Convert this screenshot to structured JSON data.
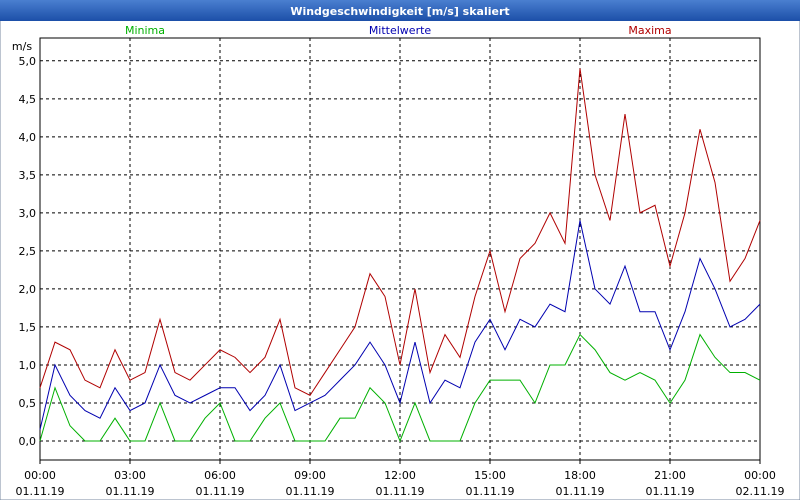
{
  "chart_data": {
    "type": "line",
    "title": "Windgeschwindigkeit [m/s] skaliert",
    "y_unit": "m/s",
    "x": [
      0,
      0.5,
      1,
      1.5,
      2,
      2.5,
      3,
      3.5,
      4,
      4.5,
      5,
      5.5,
      6,
      6.5,
      7,
      7.5,
      8,
      8.5,
      9,
      9.5,
      10,
      10.5,
      11,
      11.5,
      12,
      12.5,
      13,
      13.5,
      14,
      14.5,
      15,
      15.5,
      16,
      16.5,
      17,
      17.5,
      18,
      18.5,
      19,
      19.5,
      20,
      20.5,
      21,
      21.5,
      22,
      22.5,
      23,
      23.5,
      24
    ],
    "series": [
      {
        "name": "Minima",
        "color": "#00b000",
        "values": [
          0,
          0.7,
          0.2,
          0,
          0,
          0.3,
          0,
          0,
          0.5,
          0,
          0,
          0.3,
          0.5,
          0,
          0,
          0.3,
          0.5,
          0,
          0,
          0,
          0.3,
          0.3,
          0.7,
          0.5,
          0,
          0.5,
          0,
          0,
          0,
          0.5,
          0.8,
          0.8,
          0.8,
          0.5,
          1.0,
          1.0,
          1.4,
          1.2,
          0.9,
          0.8,
          0.9,
          0.8,
          0.5,
          0.8,
          1.4,
          1.1,
          0.9,
          0.9,
          0.8
        ]
      },
      {
        "name": "Mittelwerte",
        "color": "#0000b0",
        "values": [
          0.15,
          1.0,
          0.6,
          0.4,
          0.3,
          0.7,
          0.4,
          0.5,
          1.0,
          0.6,
          0.5,
          0.6,
          0.7,
          0.7,
          0.4,
          0.6,
          1.0,
          0.4,
          0.5,
          0.6,
          0.8,
          1.0,
          1.3,
          1.0,
          0.5,
          1.3,
          0.5,
          0.8,
          0.7,
          1.3,
          1.6,
          1.2,
          1.6,
          1.5,
          1.8,
          1.7,
          2.9,
          2.0,
          1.8,
          2.3,
          1.7,
          1.7,
          1.2,
          1.7,
          2.4,
          2.0,
          1.5,
          1.6,
          1.8
        ]
      },
      {
        "name": "Maxima",
        "color": "#b00000",
        "values": [
          0.7,
          1.3,
          1.2,
          0.8,
          0.7,
          1.2,
          0.8,
          0.9,
          1.6,
          0.9,
          0.8,
          1.0,
          1.2,
          1.1,
          0.9,
          1.1,
          1.6,
          0.7,
          0.6,
          0.9,
          1.2,
          1.5,
          2.2,
          1.9,
          1.0,
          2.0,
          0.9,
          1.4,
          1.1,
          1.9,
          2.5,
          1.7,
          2.4,
          2.6,
          3.0,
          2.6,
          4.9,
          3.5,
          2.9,
          4.3,
          3.0,
          3.1,
          2.3,
          3.0,
          4.1,
          3.4,
          2.1,
          2.4,
          2.9
        ]
      }
    ],
    "xlim": [
      0,
      24
    ],
    "xticks": [
      {
        "value": 0,
        "label": "00:00",
        "date": "01.11.19"
      },
      {
        "value": 3,
        "label": "03:00",
        "date": "01.11.19"
      },
      {
        "value": 6,
        "label": "06:00",
        "date": "01.11.19"
      },
      {
        "value": 9,
        "label": "09:00",
        "date": "01.11.19"
      },
      {
        "value": 12,
        "label": "12:00",
        "date": "01.11.19"
      },
      {
        "value": 15,
        "label": "15:00",
        "date": "01.11.19"
      },
      {
        "value": 18,
        "label": "18:00",
        "date": "01.11.19"
      },
      {
        "value": 21,
        "label": "21:00",
        "date": "01.11.19"
      },
      {
        "value": 24,
        "label": "00:00",
        "date": "02.11.19"
      }
    ],
    "ylim": [
      -0.25,
      5.3
    ],
    "yticks": [
      {
        "value": 0,
        "label": "0,0"
      },
      {
        "value": 0.5,
        "label": "0,5"
      },
      {
        "value": 1,
        "label": "1,0"
      },
      {
        "value": 1.5,
        "label": "1,5"
      },
      {
        "value": 2,
        "label": "2,0"
      },
      {
        "value": 2.5,
        "label": "2,5"
      },
      {
        "value": 3,
        "label": "3,0"
      },
      {
        "value": 3.5,
        "label": "3,5"
      },
      {
        "value": 4,
        "label": "4,0"
      },
      {
        "value": 4.5,
        "label": "4,5"
      },
      {
        "value": 5,
        "label": "5,0"
      }
    ],
    "grid": true
  }
}
